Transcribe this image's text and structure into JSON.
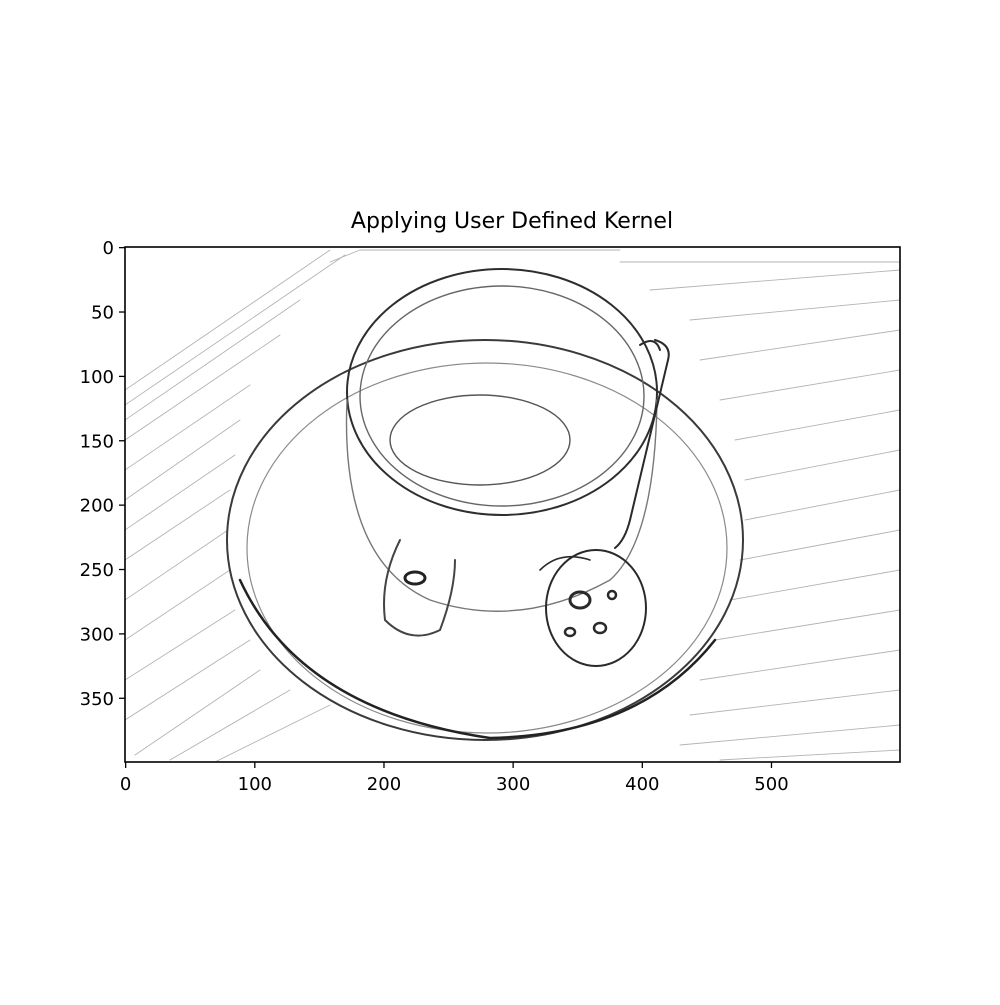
{
  "chart_data": {
    "type": "heatmap",
    "title": "Applying User Defined Kernel",
    "xlabel": "",
    "ylabel": "",
    "colormap": "gray",
    "image_size": [
      600,
      400
    ],
    "xlim": [
      0,
      599
    ],
    "ylim": [
      399,
      0
    ],
    "xticks": [
      0,
      100,
      200,
      300,
      400,
      500
    ],
    "yticks": [
      0,
      50,
      100,
      150,
      200,
      250,
      300,
      350
    ],
    "grid": false,
    "legend": "none"
  }
}
